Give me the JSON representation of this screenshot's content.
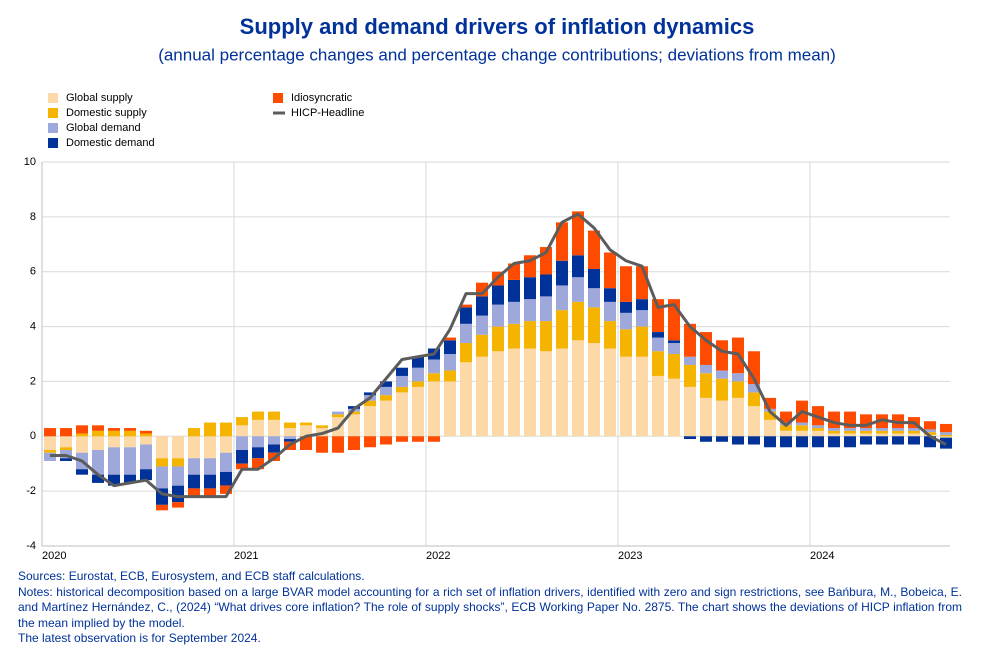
{
  "chart_data": {
    "type": "bar",
    "stacked": true,
    "title": "Supply and demand drivers of inflation dynamics",
    "subtitle": "(annual percentage changes and percentage change contributions; deviations from mean)",
    "categories": [
      "2020",
      null,
      null,
      null,
      null,
      null,
      null,
      null,
      null,
      null,
      null,
      null,
      "2021",
      null,
      null,
      null,
      null,
      null,
      null,
      null,
      null,
      null,
      null,
      null,
      "2022",
      null,
      null,
      null,
      null,
      null,
      null,
      null,
      null,
      null,
      null,
      null,
      "2023",
      null,
      null,
      null,
      null,
      null,
      null,
      null,
      null,
      null,
      null,
      null,
      "2024",
      null,
      null,
      null,
      null,
      null,
      null,
      null,
      null
    ],
    "series": [
      {
        "name": "Global supply",
        "color": "#fcd9a6",
        "values": [
          -0.5,
          -0.4,
          -0.6,
          -0.5,
          -0.4,
          -0.4,
          -0.3,
          -0.8,
          -0.8,
          -0.8,
          -0.8,
          -0.6,
          0.4,
          0.6,
          0.6,
          0.3,
          0.4,
          0.3,
          0.7,
          0.8,
          1.1,
          1.3,
          1.6,
          1.8,
          2.0,
          2.0,
          2.7,
          2.9,
          3.1,
          3.2,
          3.2,
          3.1,
          3.2,
          3.5,
          3.4,
          3.2,
          2.9,
          2.9,
          2.2,
          2.1,
          1.8,
          1.4,
          1.3,
          1.4,
          1.1,
          0.6,
          0.2,
          0.2,
          0.2,
          0.1,
          0.1,
          0.1,
          0.1,
          0.1,
          0.1,
          0.05,
          -0.05
        ]
      },
      {
        "name": "Domestic supply",
        "color": "#f5b400",
        "values": [
          -0.1,
          -0.1,
          0.1,
          0.2,
          0.2,
          0.2,
          0.1,
          -0.3,
          -0.3,
          0.3,
          0.5,
          0.5,
          0.3,
          0.3,
          0.3,
          0.2,
          0.1,
          0.1,
          0.1,
          0.1,
          0.2,
          0.2,
          0.2,
          0.2,
          0.3,
          0.4,
          0.7,
          0.8,
          0.9,
          0.9,
          1.0,
          1.1,
          1.4,
          1.4,
          1.3,
          1.0,
          1.0,
          1.1,
          0.9,
          0.9,
          0.8,
          0.9,
          0.8,
          0.6,
          0.5,
          0.3,
          0.2,
          0.2,
          0.1,
          0.1,
          0.1,
          0.1,
          0.1,
          0.1,
          0.1,
          0.1,
          0.05
        ]
      },
      {
        "name": "Global demand",
        "color": "#9fa8da",
        "values": [
          -0.3,
          -0.3,
          -0.6,
          -0.9,
          -1.0,
          -1.0,
          -0.9,
          -0.8,
          -0.7,
          -0.6,
          -0.6,
          -0.7,
          -0.5,
          -0.4,
          -0.3,
          -0.1,
          0.0,
          0.0,
          0.1,
          0.1,
          0.2,
          0.3,
          0.4,
          0.5,
          0.5,
          0.6,
          0.7,
          0.7,
          0.8,
          0.8,
          0.8,
          0.9,
          0.9,
          0.9,
          0.7,
          0.7,
          0.6,
          0.6,
          0.5,
          0.4,
          0.3,
          0.3,
          0.3,
          0.3,
          0.3,
          0.1,
          0.1,
          0.1,
          0.1,
          0.1,
          0.1,
          0.1,
          0.1,
          0.1,
          0.1,
          0.1,
          0.1
        ]
      },
      {
        "name": "Domestic demand",
        "color": "#003299",
        "values": [
          0,
          -0.1,
          -0.2,
          -0.3,
          -0.4,
          -0.3,
          -0.4,
          -0.6,
          -0.6,
          -0.5,
          -0.5,
          -0.5,
          -0.5,
          -0.4,
          -0.3,
          -0.1,
          0.0,
          0.0,
          0.0,
          0.1,
          0.1,
          0.2,
          0.3,
          0.4,
          0.4,
          0.5,
          0.6,
          0.7,
          0.7,
          0.8,
          0.8,
          0.8,
          0.9,
          0.8,
          0.7,
          0.5,
          0.4,
          0.4,
          0.2,
          0.1,
          -0.1,
          -0.2,
          -0.2,
          -0.3,
          -0.3,
          -0.4,
          -0.4,
          -0.4,
          -0.4,
          -0.4,
          -0.4,
          -0.3,
          -0.3,
          -0.3,
          -0.3,
          -0.4,
          -0.4
        ]
      },
      {
        "name": "Idiosyncratic",
        "color": "#ff4b00",
        "values": [
          0.3,
          0.3,
          0.3,
          0.2,
          0.1,
          0.1,
          0.1,
          -0.2,
          -0.2,
          -0.3,
          -0.3,
          -0.3,
          -0.2,
          -0.4,
          -0.3,
          -0.3,
          -0.5,
          -0.6,
          -0.6,
          -0.5,
          -0.4,
          -0.3,
          -0.2,
          -0.2,
          -0.2,
          0.1,
          0.1,
          0.5,
          0.5,
          0.6,
          0.8,
          1.0,
          1.4,
          1.6,
          1.4,
          1.3,
          1.3,
          1.2,
          1.2,
          1.5,
          1.2,
          1.2,
          1.1,
          1.3,
          1.2,
          0.4,
          0.4,
          0.8,
          0.7,
          0.6,
          0.6,
          0.5,
          0.5,
          0.5,
          0.4,
          0.3,
          0.3
        ]
      }
    ],
    "line": {
      "name": "HICP-Headline",
      "color": "#5c5c5c",
      "values": [
        -0.7,
        -0.7,
        -0.9,
        -1.4,
        -1.8,
        -1.7,
        -1.6,
        -2.1,
        -2.2,
        -2.2,
        -2.2,
        -2.2,
        -1.2,
        -1.2,
        -0.8,
        -0.3,
        0.0,
        0.1,
        0.3,
        1.0,
        1.4,
        2.1,
        2.8,
        2.9,
        3.0,
        3.9,
        5.2,
        5.2,
        5.8,
        6.3,
        6.4,
        6.7,
        7.8,
        8.1,
        7.6,
        6.8,
        6.4,
        6.2,
        4.7,
        4.8,
        4.0,
        3.5,
        3.1,
        3.0,
        2.1,
        0.9,
        0.4,
        0.9,
        0.7,
        0.5,
        0.4,
        0.4,
        0.6,
        0.5,
        0.5,
        0.0,
        -0.3
      ]
    },
    "ylim": [
      -4,
      10
    ],
    "yticks": [
      -4,
      -2,
      0,
      2,
      4,
      6,
      8,
      10
    ],
    "grid": true,
    "notes": [
      "Sources: Eurostat, ECB, Eurosystem, and ECB staff calculations.",
      "Notes: historical decomposition based on a large BVAR model accounting for a rich set of inflation drivers, identified with zero and sign restrictions, see Bańbura, M., Bobeica, E. and Martínez Hernández, C., (2024) “What drives core inflation? The role of supply shocks”, ECB Working Paper No. 2875. The chart shows the deviations of HICP inflation from the mean implied by the model.",
      "The latest observation is for September 2024."
    ]
  }
}
